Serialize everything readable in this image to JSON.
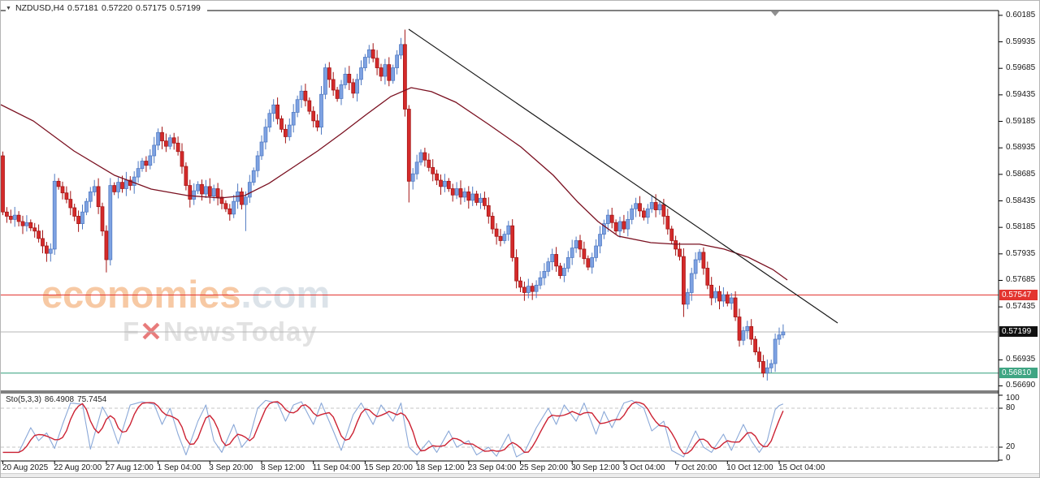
{
  "header": {
    "symbol": "NZDUSD,H4",
    "open": "0.57181",
    "high": "0.57220",
    "low": "0.57175",
    "close": "0.57199"
  },
  "watermark": {
    "brand": "economies",
    "brand_suffix": ".com",
    "sub_pre": "F",
    "sub_x": "✕",
    "sub_post": "NewsToday"
  },
  "indicator": {
    "label": "Sto(5,3,3)",
    "k_value": "86.4908",
    "d_value": "75.7454"
  },
  "colors": {
    "up_fill": "#7ea2e2",
    "up_border": "#4f79c2",
    "down_fill": "#d42a2a",
    "down_border": "#a31414",
    "ma": "#7a1020",
    "trend": "#1a1a1a",
    "stoch_k": "#8aa8d8",
    "stoch_d": "#cc2233",
    "grid_dash": "#c4c4c4",
    "frame": "#000000",
    "axis_text": "#1a1a1a",
    "watermark_main": "#f7c9a4",
    "watermark_suffix": "#dce3e9",
    "watermark_sub": "#e2e2e2",
    "watermark_x": "#e87b7b",
    "triangle": "#909090",
    "resistance": "#e3342f",
    "last_price_line": "#b4b4b4",
    "support": "#2e9e79"
  },
  "chart_data": {
    "type": "candlestick",
    "symbol": "NZDUSD",
    "timeframe": "H4",
    "quote": {
      "open": 0.57181,
      "high": 0.5722,
      "low": 0.57175,
      "close": 0.57199
    },
    "ylim": [
      0.5664,
      0.6023
    ],
    "x_start": 2.5,
    "x_spacing": 4.9,
    "candle_width": 4,
    "first_open": 0.5886,
    "closes": [
      0.5833,
      0.5829,
      0.5826,
      0.583,
      0.5824,
      0.582,
      0.5823,
      0.5818,
      0.5815,
      0.5808,
      0.5801,
      0.5794,
      0.5798,
      0.5862,
      0.5857,
      0.5851,
      0.5845,
      0.5837,
      0.5829,
      0.5822,
      0.5833,
      0.5843,
      0.5852,
      0.5857,
      0.5838,
      0.5815,
      0.5788,
      0.5858,
      0.5852,
      0.5861,
      0.5855,
      0.5863,
      0.5858,
      0.5866,
      0.5874,
      0.5881,
      0.5877,
      0.5886,
      0.5896,
      0.5908,
      0.59,
      0.5895,
      0.5903,
      0.5898,
      0.589,
      0.5876,
      0.5858,
      0.5845,
      0.5853,
      0.5859,
      0.585,
      0.5857,
      0.5848,
      0.5855,
      0.5847,
      0.5841,
      0.5836,
      0.5831,
      0.5843,
      0.5852,
      0.584,
      0.5847,
      0.5861,
      0.5872,
      0.5886,
      0.5899,
      0.5913,
      0.5926,
      0.5934,
      0.5921,
      0.5911,
      0.5904,
      0.5915,
      0.5927,
      0.5939,
      0.5947,
      0.5938,
      0.5928,
      0.5919,
      0.5913,
      0.5944,
      0.5969,
      0.5958,
      0.5948,
      0.594,
      0.5953,
      0.5963,
      0.5955,
      0.5945,
      0.5958,
      0.5969,
      0.5979,
      0.5986,
      0.5978,
      0.5969,
      0.5961,
      0.5972,
      0.5957,
      0.5969,
      0.5981,
      0.5991,
      0.593,
      0.5862,
      0.5869,
      0.588,
      0.5889,
      0.5882,
      0.5875,
      0.5869,
      0.5863,
      0.5857,
      0.5862,
      0.5855,
      0.5849,
      0.5855,
      0.5847,
      0.5852,
      0.5844,
      0.585,
      0.5842,
      0.5846,
      0.5839,
      0.5829,
      0.5817,
      0.581,
      0.5806,
      0.5812,
      0.582,
      0.579,
      0.5768,
      0.5762,
      0.5757,
      0.5763,
      0.5758,
      0.5764,
      0.5771,
      0.5777,
      0.5786,
      0.5793,
      0.5782,
      0.5773,
      0.578,
      0.579,
      0.5799,
      0.5806,
      0.5798,
      0.5789,
      0.5781,
      0.579,
      0.5801,
      0.5812,
      0.5822,
      0.583,
      0.5823,
      0.5815,
      0.5824,
      0.5817,
      0.5826,
      0.5836,
      0.5841,
      0.5834,
      0.5828,
      0.5836,
      0.5842,
      0.5835,
      0.584,
      0.5829,
      0.5817,
      0.5806,
      0.5798,
      0.5791,
      0.5746,
      0.5757,
      0.5775,
      0.5788,
      0.5795,
      0.578,
      0.5764,
      0.5752,
      0.5758,
      0.5749,
      0.5755,
      0.5747,
      0.5752,
      0.5734,
      0.5712,
      0.5721,
      0.5725,
      0.5713,
      0.5701,
      0.5692,
      0.5681,
      0.5686,
      0.569,
      0.5713,
      0.5717,
      0.57199
    ],
    "wick_overrides": {
      "0": {
        "high": 0.589
      },
      "11": {
        "low": 0.5786
      },
      "26": {
        "low": 0.5776
      },
      "61": {
        "low": 0.5815
      },
      "101": {
        "high": 0.6005
      },
      "102": {
        "low": 0.5842
      },
      "133": {
        "low": 0.575
      },
      "171": {
        "low": 0.5734
      },
      "185": {
        "low": 0.5706
      },
      "191": {
        "low": 0.5677
      },
      "196": {
        "high": 0.5727
      }
    },
    "ma_line": [
      [
        0,
        0.59342
      ],
      [
        40,
        0.59189
      ],
      [
        90,
        0.58906
      ],
      [
        140,
        0.58676
      ],
      [
        185,
        0.58546
      ],
      [
        230,
        0.58485
      ],
      [
        270,
        0.58462
      ],
      [
        300,
        0.58485
      ],
      [
        330,
        0.586
      ],
      [
        360,
        0.58753
      ],
      [
        390,
        0.58906
      ],
      [
        420,
        0.59074
      ],
      [
        450,
        0.5925
      ],
      [
        480,
        0.59419
      ],
      [
        505,
        0.59503
      ],
      [
        530,
        0.59465
      ],
      [
        560,
        0.59365
      ],
      [
        600,
        0.59158
      ],
      [
        640,
        0.58944
      ],
      [
        680,
        0.58676
      ],
      [
        710,
        0.58424
      ],
      [
        735,
        0.5824
      ],
      [
        760,
        0.58102
      ],
      [
        800,
        0.58041
      ],
      [
        830,
        0.58026
      ],
      [
        860,
        0.58026
      ],
      [
        890,
        0.5798
      ],
      [
        920,
        0.57903
      ],
      [
        950,
        0.57788
      ],
      [
        968,
        0.57689
      ]
    ],
    "trendline": [
      [
        502,
        0.60054
      ],
      [
        1030,
        0.57283
      ]
    ],
    "hlines": [
      {
        "name": "resistance",
        "price": 0.57547,
        "label": "0.57547",
        "line_color": "#e3342f",
        "label_bg": "#e3342f",
        "label_fg": "#ffffff"
      },
      {
        "name": "last-price",
        "price": 0.57199,
        "label": "0.57199",
        "line_color": "#b4b4b4",
        "label_bg": "#111111",
        "label_fg": "#ffffff"
      },
      {
        "name": "support",
        "price": 0.5681,
        "label": "0.56810",
        "line_color": "#2e9e79",
        "label_bg": "#3fa583",
        "label_fg": "#ffffff"
      }
    ],
    "price_ticks": [
      {
        "label": "0.60185",
        "price": 0.60185
      },
      {
        "label": "0.59935",
        "price": 0.59935
      },
      {
        "label": "0.59685",
        "price": 0.59685
      },
      {
        "label": "0.59435",
        "price": 0.59435
      },
      {
        "label": "0.59185",
        "price": 0.59185
      },
      {
        "label": "0.58935",
        "price": 0.58935
      },
      {
        "label": "0.58685",
        "price": 0.58685
      },
      {
        "label": "0.58435",
        "price": 0.58435
      },
      {
        "label": "0.58185",
        "price": 0.58185
      },
      {
        "label": "0.57935",
        "price": 0.57935
      },
      {
        "label": "0.57685",
        "price": 0.57685
      },
      {
        "label": "0.57435",
        "price": 0.57435
      },
      {
        "label": "0.56935",
        "price": 0.56935
      },
      {
        "label": "0.56690",
        "price": 0.5669
      }
    ],
    "time_labels": [
      "20 Aug 2025",
      "22 Aug 20:00",
      "27 Aug 12:00",
      "1 Sep 04:00",
      "3 Sep 20:00",
      "8 Sep 12:00",
      "11 Sep 04:00",
      "15 Sep 20:00",
      "18 Sep 12:00",
      "23 Sep 04:00",
      "25 Sep 20:00",
      "30 Sep 12:00",
      "3 Oct 04:00",
      "7 Oct 20:00",
      "10 Oct 12:00",
      "15 Oct 04:00"
    ],
    "label_every": 13,
    "stochastic": {
      "name": "Sto(5,3,3)",
      "k": 86.4908,
      "d": 75.7454,
      "levels": [
        100,
        80,
        20,
        0
      ],
      "dashed_levels": [
        80,
        20
      ],
      "k_anchors": [
        [
          0,
          12
        ],
        [
          4,
          12
        ],
        [
          7,
          50
        ],
        [
          9,
          30
        ],
        [
          11,
          42
        ],
        [
          13,
          18
        ],
        [
          15,
          55
        ],
        [
          17,
          88
        ],
        [
          20,
          86
        ],
        [
          22,
          17
        ],
        [
          25,
          82
        ],
        [
          27,
          60
        ],
        [
          29,
          25
        ],
        [
          32,
          85
        ],
        [
          35,
          90
        ],
        [
          38,
          86
        ],
        [
          40,
          55
        ],
        [
          42,
          80
        ],
        [
          44,
          40
        ],
        [
          46,
          8
        ],
        [
          49,
          60
        ],
        [
          51,
          85
        ],
        [
          53,
          30
        ],
        [
          55,
          12
        ],
        [
          58,
          55
        ],
        [
          60,
          20
        ],
        [
          62,
          35
        ],
        [
          64,
          80
        ],
        [
          66,
          92
        ],
        [
          69,
          88
        ],
        [
          71,
          60
        ],
        [
          73,
          85
        ],
        [
          75,
          90
        ],
        [
          78,
          55
        ],
        [
          80,
          88
        ],
        [
          83,
          45
        ],
        [
          85,
          15
        ],
        [
          88,
          70
        ],
        [
          90,
          88
        ],
        [
          93,
          55
        ],
        [
          95,
          85
        ],
        [
          98,
          60
        ],
        [
          100,
          88
        ],
        [
          102,
          20
        ],
        [
          104,
          8
        ],
        [
          107,
          30
        ],
        [
          109,
          12
        ],
        [
          112,
          45
        ],
        [
          114,
          20
        ],
        [
          117,
          30
        ],
        [
          119,
          8
        ],
        [
          122,
          20
        ],
        [
          124,
          6
        ],
        [
          127,
          40
        ],
        [
          129,
          5
        ],
        [
          131,
          12
        ],
        [
          134,
          50
        ],
        [
          137,
          80
        ],
        [
          139,
          55
        ],
        [
          141,
          85
        ],
        [
          144,
          60
        ],
        [
          146,
          88
        ],
        [
          149,
          40
        ],
        [
          151,
          75
        ],
        [
          153,
          50
        ],
        [
          156,
          88
        ],
        [
          158,
          92
        ],
        [
          161,
          80
        ],
        [
          163,
          45
        ],
        [
          166,
          60
        ],
        [
          168,
          15
        ],
        [
          171,
          5
        ],
        [
          174,
          45
        ],
        [
          176,
          20
        ],
        [
          178,
          12
        ],
        [
          181,
          40
        ],
        [
          183,
          15
        ],
        [
          186,
          55
        ],
        [
          188,
          30
        ],
        [
          190,
          12
        ],
        [
          192,
          30
        ],
        [
          193,
          55
        ],
        [
          194,
          78
        ],
        [
          195,
          84
        ],
        [
          196,
          86.5
        ]
      ]
    }
  }
}
